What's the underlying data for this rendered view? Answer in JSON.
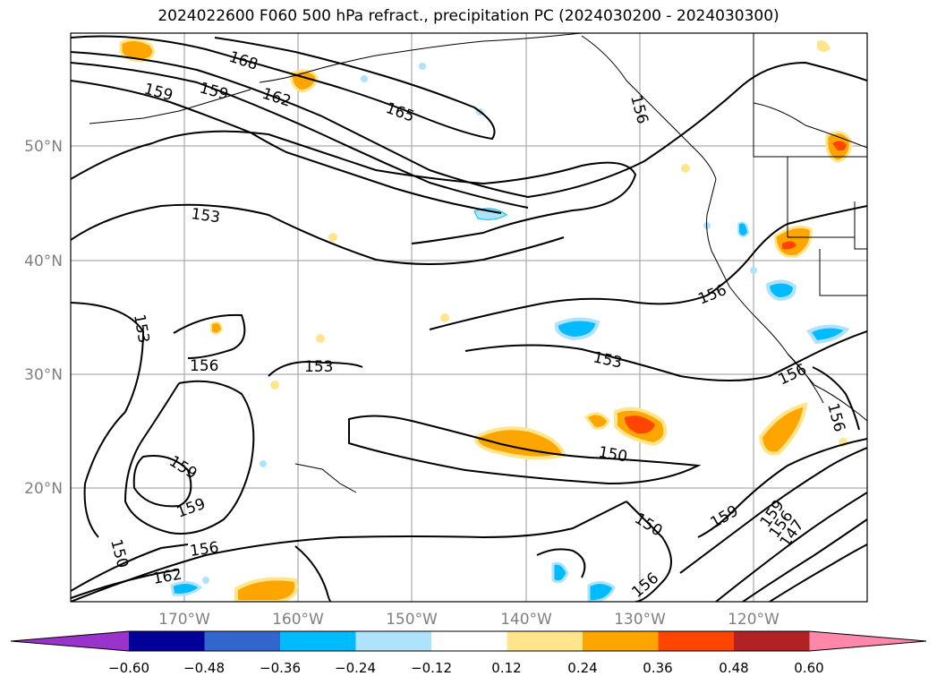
{
  "title": "2024022600 F060 500 hPa refract., precipitation PC (2024030200 - 2024030300)",
  "map": {
    "lat_ticks": [
      "50°N",
      "40°N",
      "30°N",
      "20°N"
    ],
    "lon_ticks": [
      "170°W",
      "160°W",
      "150°W",
      "140°W",
      "130°W",
      "120°W"
    ],
    "grid": true,
    "tick_color": "#808080"
  },
  "contour_labels": [
    "168",
    "159",
    "159",
    "162",
    "165",
    "153",
    "153",
    "156",
    "153",
    "153",
    "156",
    "156",
    "159",
    "150",
    "156",
    "159",
    "162",
    "150",
    "150",
    "159",
    "156",
    "156",
    "159",
    "156",
    "147",
    "156"
  ],
  "colorbar": {
    "ticks": [
      "−0.60",
      "−0.48",
      "−0.36",
      "−0.24",
      "−0.12",
      "0.12",
      "0.24",
      "0.36",
      "0.48",
      "0.60"
    ],
    "colors": [
      "#9933cc",
      "#000099",
      "#3366cc",
      "#00bbff",
      "#aee3fb",
      "#ffffff",
      "#ffe68c",
      "#ffa500",
      "#ff4500",
      "#b22222",
      "#ff88aa"
    ]
  }
}
